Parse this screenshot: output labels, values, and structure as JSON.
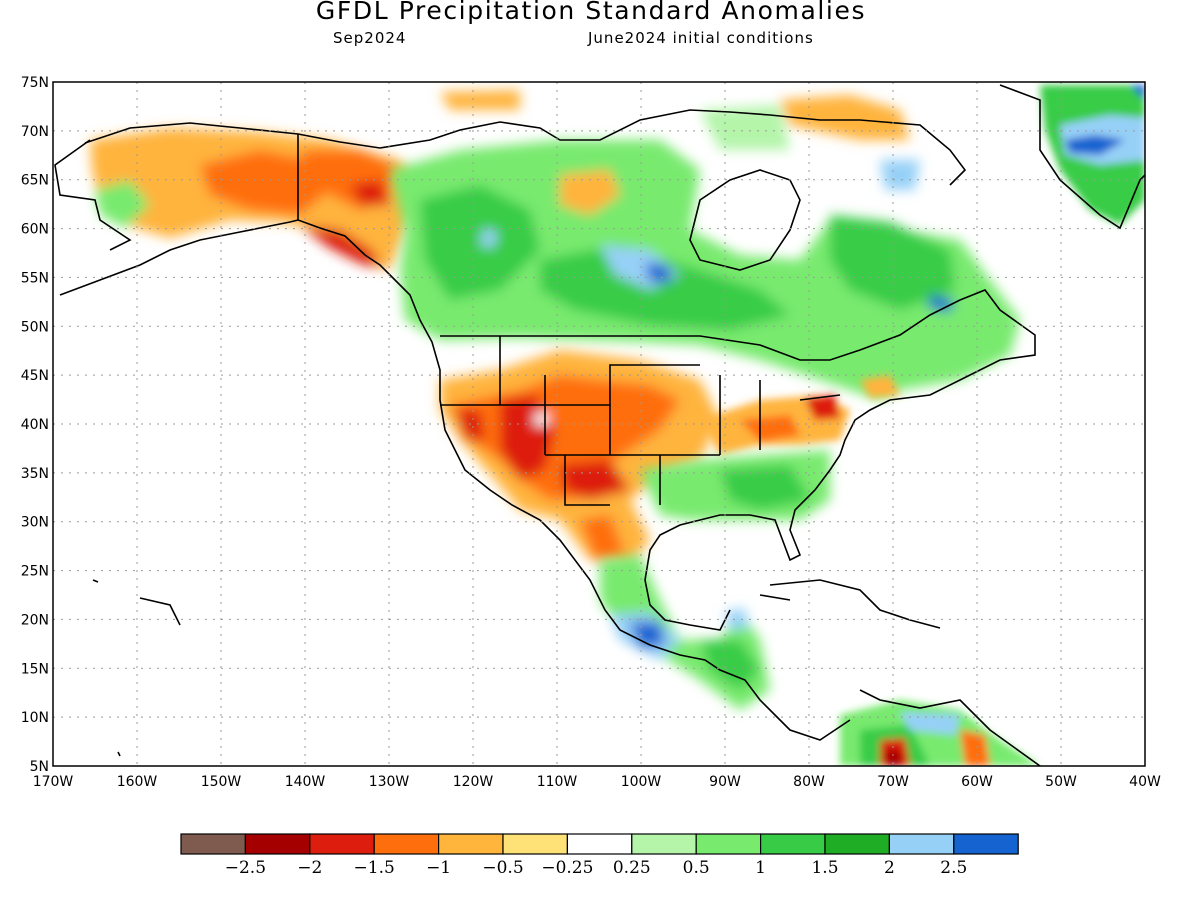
{
  "title": "GFDL Precipitation Standard Anomalies",
  "subtitle_left": "Sep2024",
  "subtitle_right": "June2024 initial conditions",
  "map": {
    "lon_range": [
      -170,
      -40
    ],
    "lat_range": [
      5,
      75
    ],
    "lon_ticks": [
      "170W",
      "160W",
      "150W",
      "140W",
      "130W",
      "120W",
      "110W",
      "100W",
      "90W",
      "80W",
      "70W",
      "60W",
      "50W",
      "40W"
    ],
    "lat_ticks": [
      "75N",
      "70N",
      "65N",
      "60N",
      "55N",
      "50N",
      "45N",
      "40N",
      "35N",
      "30N",
      "25N",
      "20N",
      "15N",
      "10N",
      "5N"
    ],
    "anomaly_regions": [
      {
        "region": "Alaska",
        "category": "dry",
        "level": -1.5
      },
      {
        "region": "Southern Alaska coast",
        "category": "dry",
        "level": -2
      },
      {
        "region": "Western Canada",
        "category": "wet",
        "level": 1.5
      },
      {
        "region": "Hudson Bay region",
        "category": "wet",
        "level": 2.5
      },
      {
        "region": "Eastern Canada",
        "category": "wet",
        "level": 1.5
      },
      {
        "region": "Great Basin / Four Corners",
        "category": "dry",
        "level": -2
      },
      {
        "region": "Northern Plains",
        "category": "dry",
        "level": -1.5
      },
      {
        "region": "Ohio Valley",
        "category": "dry",
        "level": -1
      },
      {
        "region": "Pennsylvania",
        "category": "dry",
        "level": -2
      },
      {
        "region": "Southeast US",
        "category": "wet",
        "level": 1
      },
      {
        "region": "Southern Mexico",
        "category": "wet",
        "level": 2.5
      },
      {
        "region": "Central America",
        "category": "wet",
        "level": 1.5
      },
      {
        "region": "Greenland",
        "category": "wet",
        "level": 2
      },
      {
        "region": "Northern Venezuela",
        "category": "dry",
        "level": -2.5
      }
    ]
  },
  "legend": {
    "colors": [
      "#7f5a4e",
      "#a50000",
      "#dd1e0e",
      "#ff6e0c",
      "#ffb43c",
      "#ffe277",
      "#ffffff",
      "#b4f5aa",
      "#78ea6e",
      "#38cc46",
      "#20ad26",
      "#96d0f7",
      "#1563d1"
    ],
    "labels": [
      "−2.5",
      "−2",
      "−1.5",
      "−1",
      "−0.5",
      "−0.25",
      "0.25",
      "0.5",
      "1",
      "1.5",
      "2",
      "2.5"
    ]
  }
}
